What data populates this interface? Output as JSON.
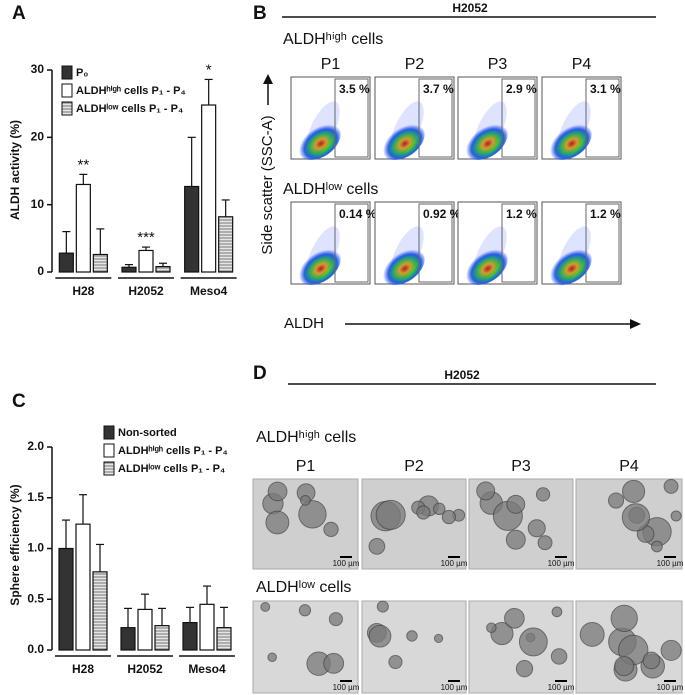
{
  "chart_data": [
    {
      "type": "bar",
      "panel_label": "A",
      "ylabel": "ALDH activity (%)",
      "categories": [
        "H28",
        "H2052",
        "Meso4"
      ],
      "series": [
        {
          "name": "P₀",
          "color": "#333333",
          "values": [
            2.8,
            0.7,
            12.7
          ],
          "errors": [
            3.2,
            0.4,
            7.3
          ]
        },
        {
          "name": "ALDHʰⁱᵍʰ cells P₁ - P₄",
          "color": "#ffffff",
          "values": [
            13,
            3.2,
            24.8
          ],
          "errors": [
            1.5,
            0.5,
            3.8
          ]
        },
        {
          "name": "ALDHˡᵒʷ cells P₁ - P₄",
          "color": "#bbbbbb",
          "pattern": "horizontal-lines",
          "values": [
            2.6,
            0.8,
            8.2
          ],
          "errors": [
            3.8,
            0.5,
            2.5
          ]
        }
      ],
      "annotations": [
        "**",
        "***",
        "*"
      ],
      "ylim": [
        0,
        30
      ],
      "yticks": [
        0,
        10,
        20,
        30
      ],
      "legend": "upper left"
    },
    {
      "type": "bar",
      "panel_label": "C",
      "ylabel": "Sphere efficiency  (%)",
      "categories": [
        "H28",
        "H2052",
        "Meso4"
      ],
      "series": [
        {
          "name": "Non-sorted",
          "color": "#333333",
          "values": [
            1.0,
            0.22,
            0.27
          ],
          "errors": [
            0.28,
            0.19,
            0.15
          ]
        },
        {
          "name": "ALDHʰⁱᵍʰ cells P₁ - P₄",
          "color": "#ffffff",
          "values": [
            1.24,
            0.4,
            0.45
          ],
          "errors": [
            0.29,
            0.15,
            0.18
          ]
        },
        {
          "name": "ALDHˡᵒʷ cells P₁ - P₄",
          "color": "#bbbbbb",
          "pattern": "horizontal-lines",
          "values": [
            0.77,
            0.24,
            0.22
          ],
          "errors": [
            0.27,
            0.17,
            0.2
          ]
        }
      ],
      "ylim": [
        0,
        2
      ],
      "yticks": [
        {
          "value": 0,
          "label": "0.0"
        },
        {
          "value": 0.5,
          "label": "0.5"
        },
        {
          "value": 1,
          "label": "1.0"
        },
        {
          "value": 1.5,
          "label": "1.5"
        },
        {
          "value": 2,
          "label": "2.0"
        }
      ],
      "legend": "upper right"
    }
  ],
  "panel_b": {
    "label": "B",
    "title": "H2052",
    "y_axis": "Side scatter (SSC-A)",
    "x_axis": "ALDH",
    "columns": [
      "P1",
      "P2",
      "P3",
      "P4"
    ],
    "rows": [
      {
        "label": "ALDHʰⁱᵍʰ cells",
        "percents": [
          "3.5 %",
          "3.7 %",
          "2.9 %",
          "3.1 %"
        ]
      },
      {
        "label": "ALDHˡᵒʷ cells",
        "percents": [
          "0.14 %",
          "0.92 %",
          "1.2 %",
          "1.2 %"
        ]
      }
    ]
  },
  "panel_d": {
    "label": "D",
    "title": "H2052",
    "columns": [
      "P1",
      "P2",
      "P3",
      "P4"
    ],
    "rows": [
      {
        "label": "ALDHʰⁱᵍʰ cells",
        "scale_bars": [
          "100 µm",
          "100 µm",
          "100 µm",
          "100 µm"
        ]
      },
      {
        "label": "ALDHˡᵒʷ cells",
        "scale_bars": [
          "100 µm",
          "100 µm",
          "100 µm",
          "100 µm"
        ]
      }
    ]
  }
}
